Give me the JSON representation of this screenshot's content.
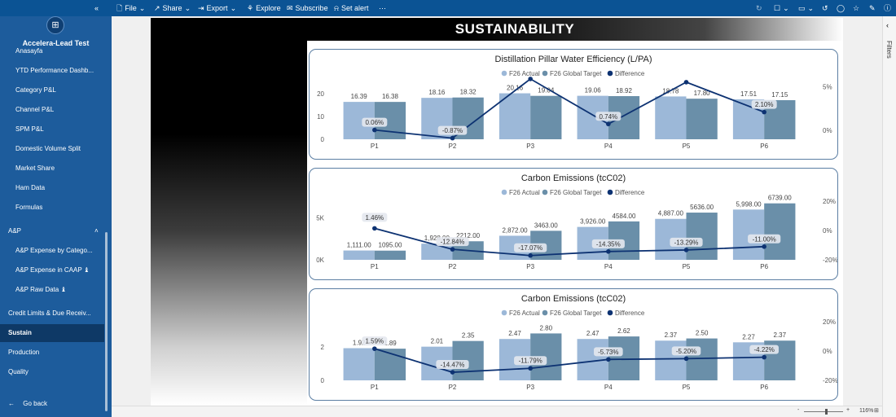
{
  "topbar": {
    "file_label": "File",
    "share_label": "Share",
    "export_label": "Export",
    "explore_label": "Explore",
    "subscribe_label": "Subscribe",
    "setalert_label": "Set alert",
    "more_label": "⋯"
  },
  "sidebar": {
    "collapse_icon": "«",
    "logo_icon": "⊞",
    "workspace_name": "Accelera-Lead Test",
    "items": [
      {
        "label": "Anasayfa",
        "indent": 1,
        "y": 53
      },
      {
        "label": "YTD Performance Dashb...",
        "indent": 1,
        "y": 77
      },
      {
        "label": "Category P&L",
        "indent": 1,
        "y": 101
      },
      {
        "label": "Channel P&L",
        "indent": 1,
        "y": 125
      },
      {
        "label": "SPM P&L",
        "indent": 1,
        "y": 149
      },
      {
        "label": "Domestic Volume Split",
        "indent": 1,
        "y": 173
      },
      {
        "label": "Market Share",
        "indent": 1,
        "y": 197
      },
      {
        "label": "Ham Data",
        "indent": 1,
        "y": 221
      },
      {
        "label": "Formulas",
        "indent": 1,
        "y": 245
      },
      {
        "label": "A&P",
        "indent": 0,
        "y": 274
      },
      {
        "label": "A&P Expense by Catego...",
        "indent": 1,
        "y": 298
      },
      {
        "label": "A&P Expense in CAAP ♝",
        "indent": 1,
        "y": 322
      },
      {
        "label": "A&P Raw Data ♝",
        "indent": 1,
        "y": 346
      },
      {
        "label": "Credit Limits & Due Receiv...",
        "indent": 0,
        "y": 375
      },
      {
        "label": "Sustain",
        "indent": 0,
        "y": 399,
        "selected": true
      },
      {
        "label": "Production",
        "indent": 0,
        "y": 423
      },
      {
        "label": "Quality",
        "indent": 0,
        "y": 447
      }
    ],
    "go_back_label": "Go back"
  },
  "page": {
    "title": "SUSTAINABILITY"
  },
  "right_pane": {
    "filters_label": "Filters"
  },
  "status": {
    "zoom_label": "116%"
  },
  "colors": {
    "actual": "#9cb8d8",
    "target": "#6a8fa9",
    "difference": "#0d3272",
    "card_border": "#5b7ea3"
  },
  "chart_data": [
    {
      "type": "bar",
      "title": "Distillation Pillar Water Efficiency (L/PA)",
      "categories": [
        "P1",
        "P2",
        "P3",
        "P4",
        "P5",
        "P6"
      ],
      "series": [
        {
          "name": "F26 Actual",
          "values": [
            16.39,
            18.16,
            20.16,
            19.06,
            18.78,
            17.51
          ],
          "labels": [
            "16.39",
            "18.16",
            "20.16",
            "19.06",
            "18.78",
            "17.51"
          ]
        },
        {
          "name": "F26 Global Target",
          "values": [
            16.38,
            18.32,
            19.04,
            18.92,
            17.8,
            17.15
          ],
          "labels": [
            "16.38",
            "18.32",
            "19.04",
            "18.92",
            "17.80",
            "17.15"
          ]
        }
      ],
      "line": {
        "name": "Difference",
        "values": [
          0.06,
          -0.87,
          5.88,
          0.74,
          5.51,
          2.1
        ],
        "labels": [
          "0.06%",
          "-0.87%",
          "",
          "0.74%",
          "",
          "2.10%"
        ]
      },
      "ylim": [
        0,
        25
      ],
      "yticks": [
        0,
        10,
        20
      ],
      "ytick_labels": [
        "0",
        "10",
        "20"
      ],
      "y2lim": [
        -1,
        5.5
      ],
      "y2ticks": [
        0,
        5
      ],
      "y2tick_labels": [
        "0%",
        "5%"
      ],
      "legend": "top-center"
    },
    {
      "type": "bar",
      "title": "Carbon Emissions (tcC02)",
      "categories": [
        "P1",
        "P2",
        "P3",
        "P4",
        "P5",
        "P6"
      ],
      "series": [
        {
          "name": "F26 Actual",
          "values": [
            1111,
            1928,
            2872,
            3926,
            4887,
            5998
          ],
          "labels": [
            "1,111.00",
            "1,928.00",
            "2,872.00",
            "3,926.00",
            "4,887.00",
            "5,998.00"
          ]
        },
        {
          "name": "F26 Global Target",
          "values": [
            1095,
            2212,
            3463,
            4584,
            5636,
            6739
          ],
          "labels": [
            "1095.00",
            "2212.00",
            "3463.00",
            "4584.00",
            "5636.00",
            "6739.00"
          ]
        }
      ],
      "line": {
        "name": "Difference",
        "values": [
          1.46,
          -12.84,
          -17.07,
          -14.35,
          -13.29,
          -11.0
        ],
        "labels": [
          "1.46%",
          "-12.84%",
          "-17.07%",
          "-14.35%",
          "-13.29%",
          "-11.00%"
        ]
      },
      "ylim": [
        0,
        7000
      ],
      "yticks": [
        0,
        5000
      ],
      "ytick_labels": [
        "0K",
        "5K"
      ],
      "y2lim": [
        -20,
        20
      ],
      "y2ticks": [
        -20,
        0,
        20
      ],
      "y2tick_labels": [
        "-20%",
        "0%",
        "20%"
      ],
      "legend": "top-center"
    },
    {
      "type": "bar",
      "title": "Carbon Emissions (tcC02)",
      "categories": [
        "P1",
        "P2",
        "P3",
        "P4",
        "P5",
        "P6"
      ],
      "series": [
        {
          "name": "F26 Actual",
          "values": [
            1.92,
            2.01,
            2.47,
            2.47,
            2.37,
            2.27
          ],
          "labels": [
            "1.92",
            "2.01",
            "2.47",
            "2.47",
            "2.37",
            "2.27"
          ]
        },
        {
          "name": "F26 Global Target",
          "values": [
            1.89,
            2.35,
            2.8,
            2.62,
            2.5,
            2.37
          ],
          "labels": [
            "1.89",
            "2.35",
            "2.80",
            "2.62",
            "2.50",
            "2.37"
          ]
        }
      ],
      "line": {
        "name": "Difference",
        "values": [
          1.59,
          -14.47,
          -11.79,
          -5.73,
          -5.2,
          -4.22
        ],
        "labels": [
          "1.59%",
          "-14.47%",
          "-11.79%",
          "-5.73%",
          "-5.20%",
          "-4.22%"
        ]
      },
      "ylim": [
        0,
        3.5
      ],
      "yticks": [
        0,
        2
      ],
      "ytick_labels": [
        "0",
        "2"
      ],
      "y2lim": [
        -20,
        20
      ],
      "y2ticks": [
        -20,
        0,
        20
      ],
      "y2tick_labels": [
        "-20%",
        "0%",
        "20%"
      ],
      "legend": "top-center"
    }
  ]
}
